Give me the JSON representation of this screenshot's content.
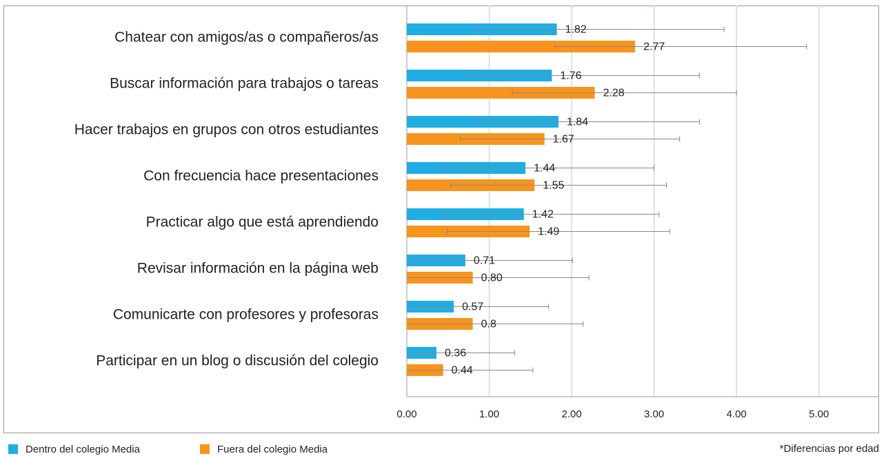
{
  "chart_data": {
    "type": "bar",
    "categories": [
      "Chatear con amigos/as o compañeros/as",
      "Buscar información para trabajos o tareas",
      "Hacer trabajos en grupos con otros estudiantes",
      "Con frecuencia hace presentaciones",
      "Practicar algo que está aprendiendo",
      "Revisar información en la página web",
      "Comunicarte con profesores y profesoras",
      "Participar en un blog o discusión del colegio"
    ],
    "series": [
      {
        "name": "Dentro del colegio Media",
        "color": "#1fade4",
        "values": [
          1.82,
          1.76,
          1.84,
          1.44,
          1.42,
          0.71,
          0.57,
          0.36
        ],
        "value_labels": [
          "1.82",
          "1.76",
          "1.84",
          "1.44",
          "1.42",
          "0.71",
          "0.57",
          "0.36"
        ],
        "errors_minus": [
          0.98,
          1.01,
          1.0,
          0.98,
          1.0,
          1.0,
          1.0,
          1.0
        ],
        "errors_plus": [
          2.03,
          1.79,
          1.71,
          1.56,
          1.64,
          1.3,
          1.15,
          0.95
        ]
      },
      {
        "name": "Fuera del colegio Media",
        "color": "#f7941d",
        "values": [
          2.77,
          2.28,
          1.67,
          1.55,
          1.49,
          0.8,
          0.8,
          0.44
        ],
        "value_labels": [
          "2.77",
          "2.28",
          "1.67",
          "1.55",
          "1.49",
          "0.80",
          "0.8",
          "0.44"
        ],
        "errors_minus": [
          0.97,
          1.0,
          1.02,
          1.02,
          1.0,
          1.0,
          1.0,
          1.0
        ],
        "errors_plus": [
          2.08,
          1.72,
          1.64,
          1.6,
          1.7,
          1.41,
          1.34,
          1.09
        ]
      }
    ],
    "xlim": [
      0,
      5.73
    ],
    "xticks": [
      {
        "value": 0,
        "label": "0.00"
      },
      {
        "value": 1,
        "label": "1.00"
      },
      {
        "value": 2,
        "label": "2.00"
      },
      {
        "value": 3,
        "label": "3.00"
      },
      {
        "value": 4,
        "label": "4.00"
      },
      {
        "value": 5,
        "label": "5.00"
      }
    ],
    "grid": true,
    "note": "*Diferencias por edad"
  }
}
